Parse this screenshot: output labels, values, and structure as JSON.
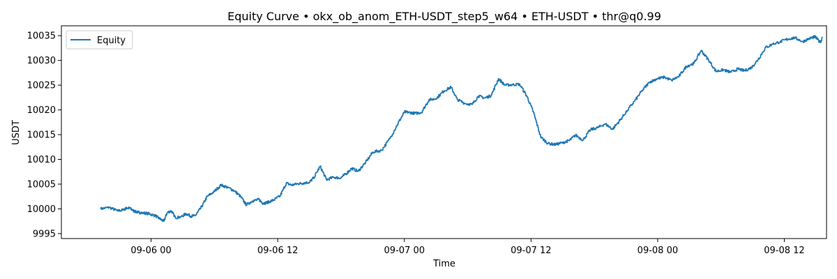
{
  "chart_data": {
    "type": "line",
    "title": "Equity Curve • okx_ob_anom_ETH-USDT_step5_w64 • ETH-USDT • thr@q0.99",
    "xlabel": "Time",
    "ylabel": "USDT",
    "x_ticks": [
      "09-06 00",
      "09-06 12",
      "09-07 00",
      "09-07 12",
      "09-08 00",
      "09-08 12"
    ],
    "x_tick_hours": [
      0,
      12,
      24,
      36,
      48,
      60
    ],
    "y_ticks": [
      9995,
      10000,
      10005,
      10010,
      10015,
      10020,
      10025,
      10030,
      10035
    ],
    "xlim_hours": [
      -8.5,
      64
    ],
    "ylim": [
      9994.0,
      10037.0
    ],
    "grid": false,
    "legend": {
      "placement": "upper-left",
      "entries": [
        "Equity"
      ]
    },
    "series": [
      {
        "name": "Equity",
        "color": "#1f77b4",
        "x_hours": [
          -4.8,
          -4.0,
          -3.2,
          -2.6,
          -2.3,
          -2.0,
          -1.6,
          -1.2,
          -0.8,
          -0.2,
          0.4,
          0.8,
          1.2,
          1.5,
          1.9,
          2.3,
          2.8,
          3.3,
          3.8,
          4.2,
          4.8,
          5.3,
          5.9,
          6.6,
          7.3,
          7.9,
          8.5,
          9.0,
          9.6,
          10.2,
          10.6,
          11.0,
          11.6,
          12.2,
          12.8,
          13.3,
          13.9,
          14.4,
          15.0,
          15.4,
          16.0,
          16.6,
          17.3,
          17.9,
          18.4,
          19.0,
          19.6,
          20.3,
          21.0,
          21.8,
          22.6,
          23.4,
          24.0,
          24.4,
          25.0,
          25.6,
          26.3,
          27.0,
          27.7,
          28.4,
          29.0,
          29.7,
          30.4,
          31.0,
          31.6,
          32.2,
          32.9,
          33.5,
          34.2,
          34.9,
          35.6,
          36.2,
          36.9,
          37.6,
          38.3,
          39.0,
          39.6,
          40.2,
          40.9,
          41.6,
          42.3,
          43.0,
          43.7,
          44.4,
          45.1,
          45.8,
          46.5,
          47.2,
          47.9,
          48.6,
          49.3,
          50.0,
          50.7,
          51.4,
          52.1,
          52.8,
          53.5,
          54.2,
          54.9,
          55.6,
          56.2,
          56.9,
          57.5,
          58.2,
          58.9,
          59.6,
          60.3,
          61.0,
          61.7,
          62.4,
          62.9,
          63.4,
          63.6
        ],
        "values": [
          10000.0,
          10000.3,
          9999.6,
          9999.8,
          10000.2,
          10000.1,
          9999.5,
          9999.3,
          9999.2,
          9999.0,
          9998.6,
          9998.0,
          9997.5,
          9999.2,
          9999.6,
          9998.2,
          9998.4,
          9999.0,
          9998.5,
          9998.7,
          10000.5,
          10002.5,
          10003.4,
          10004.8,
          10004.3,
          10003.6,
          10002.4,
          10000.8,
          10001.6,
          10001.9,
          10001.1,
          10001.3,
          10001.8,
          10002.6,
          10005.2,
          10004.8,
          10005.1,
          10005.2,
          10005.4,
          10006.3,
          10008.6,
          10005.9,
          10006.4,
          10006.2,
          10007.0,
          10008.2,
          10007.6,
          10009.4,
          10011.5,
          10011.8,
          10014.2,
          10017.4,
          10019.6,
          10019.5,
          10019.3,
          10019.5,
          10022.0,
          10022.3,
          10023.8,
          10024.6,
          10022.1,
          10021.3,
          10021.1,
          10022.8,
          10022.4,
          10022.9,
          10026.3,
          10025.0,
          10025.1,
          10025.2,
          10022.7,
          10019.6,
          10014.5,
          10013.2,
          10013.0,
          10013.4,
          10013.8,
          10014.9,
          10013.9,
          10016.0,
          10016.4,
          10017.2,
          10016.1,
          10017.9,
          10019.9,
          10021.8,
          10023.9,
          10025.6,
          10026.3,
          10026.6,
          10026.0,
          10026.8,
          10028.8,
          10029.4,
          10032.0,
          10030.1,
          10027.8,
          10028.1,
          10027.6,
          10028.3,
          10027.9,
          10028.6,
          10030.2,
          10032.6,
          10033.3,
          10033.8,
          10034.3,
          10034.6,
          10033.8,
          10034.5,
          10034.8,
          10033.6,
          10034.6
        ]
      }
    ]
  }
}
